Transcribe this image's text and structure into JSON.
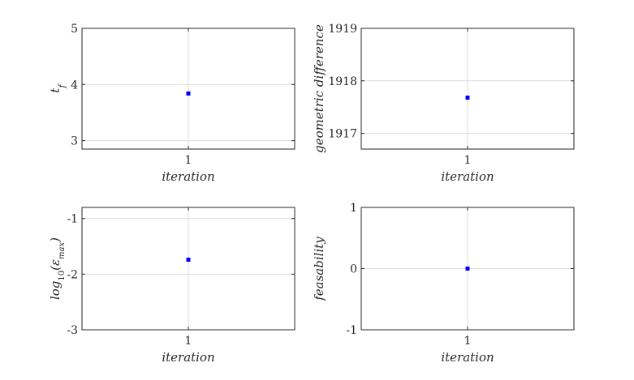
{
  "chart_data": [
    {
      "type": "scatter",
      "xlabel": "iteration",
      "ylabel": "t_f",
      "xlim": [
        0,
        2
      ],
      "ylim": [
        2.85,
        5
      ],
      "xticks": [
        1
      ],
      "xticklabels": [
        "1"
      ],
      "yticks": [
        3,
        4,
        5
      ],
      "yticklabels": [
        "3",
        "4",
        "5"
      ],
      "grid": true,
      "marker_color": "#0000ff",
      "series": [
        {
          "x": [
            1
          ],
          "y": [
            3.84
          ]
        }
      ]
    },
    {
      "type": "scatter",
      "xlabel": "iteration",
      "ylabel": "geometric difference",
      "xlim": [
        0,
        2
      ],
      "ylim": [
        1916.7,
        1919
      ],
      "xticks": [
        1
      ],
      "xticklabels": [
        "1"
      ],
      "yticks": [
        1917,
        1918,
        1919
      ],
      "yticklabels": [
        "1917",
        "1918",
        "1919"
      ],
      "grid": true,
      "marker_color": "#0000ff",
      "series": [
        {
          "x": [
            1
          ],
          "y": [
            1917.68
          ]
        }
      ]
    },
    {
      "type": "scatter",
      "xlabel": "iteration",
      "ylabel": "log10(ε_max)",
      "xlim": [
        0,
        2
      ],
      "ylim": [
        -3,
        -0.8
      ],
      "xticks": [
        1
      ],
      "xticklabels": [
        "1"
      ],
      "yticks": [
        -3,
        -2,
        -1
      ],
      "yticklabels": [
        "-3",
        "-2",
        "-1"
      ],
      "grid": true,
      "marker_color": "#0000ff",
      "series": [
        {
          "x": [
            1
          ],
          "y": [
            -1.74
          ]
        }
      ]
    },
    {
      "type": "scatter",
      "xlabel": "iteration",
      "ylabel": "feasability",
      "xlim": [
        0,
        2
      ],
      "ylim": [
        -1,
        1
      ],
      "xticks": [
        1
      ],
      "xticklabels": [
        "1"
      ],
      "yticks": [
        -1,
        0,
        1
      ],
      "yticklabels": [
        "-1",
        "0",
        "1"
      ],
      "grid": true,
      "marker_color": "#0000ff",
      "series": [
        {
          "x": [
            1
          ],
          "y": [
            0
          ]
        }
      ]
    }
  ]
}
